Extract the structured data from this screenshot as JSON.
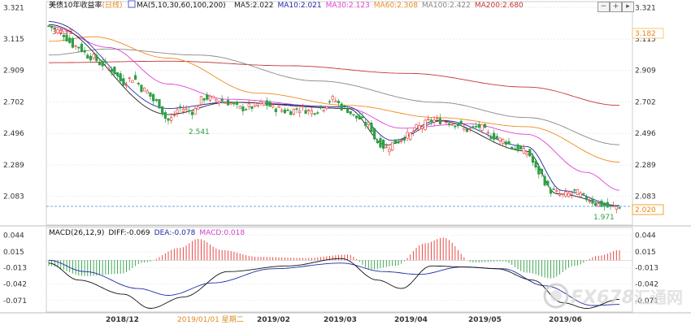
{
  "header": {
    "title": "美债10年收益率",
    "period": "(日线)",
    "ma_text": "MA(5,10,30,60,100,200)",
    "ma_values": [
      {
        "label": "MA5:2.022",
        "color": "#222222"
      },
      {
        "label": "MA10:2.021",
        "color": "#1e2aa8"
      },
      {
        "label": "MA30:2.123",
        "color": "#e040d8"
      },
      {
        "label": "MA60:2.308",
        "color": "#ef8a1f"
      },
      {
        "label": "MA100:2.422",
        "color": "#888888"
      },
      {
        "label": "MA200:2.680",
        "color": "#c83232"
      }
    ]
  },
  "macd_header": {
    "params": "MACD(26,12,9)",
    "diff": "DIFF:-0.069",
    "dea": "DEA:-0.078",
    "macd": "MACD:0.018"
  },
  "controls": {
    "minus": "−",
    "plus": "+",
    "more": "▸"
  },
  "annotations": {
    "high": "3.233",
    "low_mid": "2.541",
    "low_end": "1.971",
    "right_marker": "3.182",
    "current": "2.020"
  },
  "x_labels": [
    "2018/12",
    "2019/01/01 星期二",
    "2019/02",
    "2019/03",
    "2019/04",
    "2019/05",
    "2019/06"
  ],
  "colors": {
    "up": "#e53935",
    "down": "#2e9e45",
    "ma5": "#222222",
    "ma10": "#1e2aa8",
    "ma30": "#e040d8",
    "ma60": "#ef8a1f",
    "ma100": "#888888",
    "ma200": "#c83232",
    "current_line": "#3c8fd8",
    "current_box": "#f5a623"
  },
  "chart_data": [
    {
      "type": "candlestick",
      "title": "美债10年收益率(日线)",
      "y_ticks": [
        3.321,
        3.115,
        2.909,
        2.702,
        2.496,
        2.289,
        2.083
      ],
      "ylim": [
        1.9,
        3.35
      ],
      "x_ticks": [
        "2018/12",
        "2019/02",
        "2019/03",
        "2019/04",
        "2019/05",
        "2019/06"
      ],
      "anchors": [
        {
          "i": 0,
          "v": 3.2
        },
        {
          "i": 3,
          "v": 3.17
        },
        {
          "i": 9,
          "v": 3.07
        },
        {
          "i": 14,
          "v": 3.0
        },
        {
          "i": 18,
          "v": 2.95
        },
        {
          "i": 21,
          "v": 2.91
        },
        {
          "i": 25,
          "v": 2.83
        },
        {
          "i": 28,
          "v": 2.86
        },
        {
          "i": 32,
          "v": 2.78
        },
        {
          "i": 36,
          "v": 2.7
        },
        {
          "i": 40,
          "v": 2.58
        },
        {
          "i": 44,
          "v": 2.66
        },
        {
          "i": 48,
          "v": 2.64
        },
        {
          "i": 52,
          "v": 2.73
        },
        {
          "i": 56,
          "v": 2.72
        },
        {
          "i": 60,
          "v": 2.7
        },
        {
          "i": 64,
          "v": 2.66
        },
        {
          "i": 68,
          "v": 2.67
        },
        {
          "i": 72,
          "v": 2.69
        },
        {
          "i": 76,
          "v": 2.66
        },
        {
          "i": 80,
          "v": 2.64
        },
        {
          "i": 84,
          "v": 2.66
        },
        {
          "i": 88,
          "v": 2.64
        },
        {
          "i": 91,
          "v": 2.66
        },
        {
          "i": 95,
          "v": 2.72
        },
        {
          "i": 99,
          "v": 2.66
        },
        {
          "i": 103,
          "v": 2.6
        },
        {
          "i": 107,
          "v": 2.55
        },
        {
          "i": 110,
          "v": 2.44
        },
        {
          "i": 113,
          "v": 2.4
        },
        {
          "i": 116,
          "v": 2.44
        },
        {
          "i": 120,
          "v": 2.48
        },
        {
          "i": 124,
          "v": 2.54
        },
        {
          "i": 128,
          "v": 2.58
        },
        {
          "i": 132,
          "v": 2.58
        },
        {
          "i": 136,
          "v": 2.56
        },
        {
          "i": 140,
          "v": 2.52
        },
        {
          "i": 144,
          "v": 2.54
        },
        {
          "i": 148,
          "v": 2.48
        },
        {
          "i": 152,
          "v": 2.45
        },
        {
          "i": 156,
          "v": 2.4
        },
        {
          "i": 160,
          "v": 2.37
        },
        {
          "i": 164,
          "v": 2.24
        },
        {
          "i": 168,
          "v": 2.12
        },
        {
          "i": 172,
          "v": 2.09
        },
        {
          "i": 176,
          "v": 2.11
        },
        {
          "i": 180,
          "v": 2.07
        },
        {
          "i": 184,
          "v": 2.03
        },
        {
          "i": 188,
          "v": 2.01
        },
        {
          "i": 191,
          "v": 2.02
        }
      ],
      "ma_anchors": {
        "ma5": [
          {
            "i": 0,
            "v": 3.21
          },
          {
            "i": 40,
            "v": 2.62
          },
          {
            "i": 60,
            "v": 2.7
          },
          {
            "i": 100,
            "v": 2.66
          },
          {
            "i": 113,
            "v": 2.42
          },
          {
            "i": 130,
            "v": 2.58
          },
          {
            "i": 160,
            "v": 2.38
          },
          {
            "i": 170,
            "v": 2.1
          },
          {
            "i": 191,
            "v": 2.022
          }
        ],
        "ma10": [
          {
            "i": 0,
            "v": 3.23
          },
          {
            "i": 40,
            "v": 2.66
          },
          {
            "i": 60,
            "v": 2.7
          },
          {
            "i": 100,
            "v": 2.67
          },
          {
            "i": 115,
            "v": 2.45
          },
          {
            "i": 132,
            "v": 2.58
          },
          {
            "i": 160,
            "v": 2.41
          },
          {
            "i": 172,
            "v": 2.12
          },
          {
            "i": 191,
            "v": 2.021
          }
        ],
        "ma30": [
          {
            "i": 0,
            "v": 3.2
          },
          {
            "i": 20,
            "v": 3.06
          },
          {
            "i": 40,
            "v": 2.82
          },
          {
            "i": 60,
            "v": 2.72
          },
          {
            "i": 100,
            "v": 2.66
          },
          {
            "i": 118,
            "v": 2.53
          },
          {
            "i": 140,
            "v": 2.56
          },
          {
            "i": 160,
            "v": 2.49
          },
          {
            "i": 180,
            "v": 2.24
          },
          {
            "i": 191,
            "v": 2.123
          }
        ],
        "ma60": [
          {
            "i": 0,
            "v": 3.1
          },
          {
            "i": 15,
            "v": 3.13
          },
          {
            "i": 40,
            "v": 2.99
          },
          {
            "i": 70,
            "v": 2.76
          },
          {
            "i": 100,
            "v": 2.68
          },
          {
            "i": 130,
            "v": 2.6
          },
          {
            "i": 160,
            "v": 2.54
          },
          {
            "i": 191,
            "v": 2.308
          }
        ],
        "ma100": [
          {
            "i": 0,
            "v": 3.01
          },
          {
            "i": 20,
            "v": 3.05
          },
          {
            "i": 50,
            "v": 3.01
          },
          {
            "i": 90,
            "v": 2.84
          },
          {
            "i": 130,
            "v": 2.7
          },
          {
            "i": 160,
            "v": 2.6
          },
          {
            "i": 191,
            "v": 2.422
          }
        ],
        "ma200": [
          {
            "i": 0,
            "v": 2.96
          },
          {
            "i": 40,
            "v": 2.97
          },
          {
            "i": 80,
            "v": 2.94
          },
          {
            "i": 120,
            "v": 2.89
          },
          {
            "i": 160,
            "v": 2.8
          },
          {
            "i": 191,
            "v": 2.68
          }
        ]
      }
    },
    {
      "type": "macd",
      "title": "MACD(26,12,9)",
      "y_ticks_left": [
        0.044,
        0.015,
        -0.013,
        -0.042,
        -0.071
      ],
      "y_ticks_right": [
        0.044,
        0.015,
        -0.013,
        -0.042,
        -0.071
      ],
      "ylim": [
        -0.09,
        0.055
      ],
      "diff_anchors": [
        {
          "i": 0,
          "v": -0.005
        },
        {
          "i": 10,
          "v": -0.035
        },
        {
          "i": 25,
          "v": -0.06
        },
        {
          "i": 34,
          "v": -0.085
        },
        {
          "i": 45,
          "v": -0.065
        },
        {
          "i": 60,
          "v": -0.02
        },
        {
          "i": 80,
          "v": -0.01
        },
        {
          "i": 98,
          "v": 0.003
        },
        {
          "i": 110,
          "v": -0.035
        },
        {
          "i": 118,
          "v": -0.05
        },
        {
          "i": 128,
          "v": -0.01
        },
        {
          "i": 140,
          "v": -0.012
        },
        {
          "i": 150,
          "v": -0.015
        },
        {
          "i": 162,
          "v": -0.035
        },
        {
          "i": 172,
          "v": -0.075
        },
        {
          "i": 180,
          "v": -0.085
        },
        {
          "i": 191,
          "v": -0.069
        }
      ],
      "dea_anchors": [
        {
          "i": 0,
          "v": 0.0
        },
        {
          "i": 12,
          "v": -0.02
        },
        {
          "i": 30,
          "v": -0.05
        },
        {
          "i": 40,
          "v": -0.062
        },
        {
          "i": 55,
          "v": -0.04
        },
        {
          "i": 75,
          "v": -0.015
        },
        {
          "i": 98,
          "v": -0.005
        },
        {
          "i": 112,
          "v": -0.02
        },
        {
          "i": 124,
          "v": -0.025
        },
        {
          "i": 138,
          "v": -0.012
        },
        {
          "i": 152,
          "v": -0.015
        },
        {
          "i": 166,
          "v": -0.045
        },
        {
          "i": 182,
          "v": -0.08
        },
        {
          "i": 191,
          "v": -0.078
        }
      ],
      "hist_anchors": [
        {
          "i": 0,
          "v": -0.01
        },
        {
          "i": 12,
          "v": -0.028
        },
        {
          "i": 24,
          "v": -0.024
        },
        {
          "i": 32,
          "v": -0.004
        },
        {
          "i": 44,
          "v": 0.022
        },
        {
          "i": 50,
          "v": 0.038
        },
        {
          "i": 58,
          "v": 0.018
        },
        {
          "i": 70,
          "v": 0.006
        },
        {
          "i": 86,
          "v": 0.004
        },
        {
          "i": 100,
          "v": 0.01
        },
        {
          "i": 108,
          "v": -0.016
        },
        {
          "i": 116,
          "v": -0.01
        },
        {
          "i": 126,
          "v": 0.03
        },
        {
          "i": 132,
          "v": 0.04
        },
        {
          "i": 142,
          "v": -0.004
        },
        {
          "i": 152,
          "v": -0.002
        },
        {
          "i": 160,
          "v": -0.022
        },
        {
          "i": 168,
          "v": -0.032
        },
        {
          "i": 176,
          "v": -0.01
        },
        {
          "i": 184,
          "v": 0.008
        },
        {
          "i": 191,
          "v": 0.018
        }
      ]
    }
  ],
  "watermark": {
    "brand": "FX678",
    "cn": "汇通网"
  }
}
